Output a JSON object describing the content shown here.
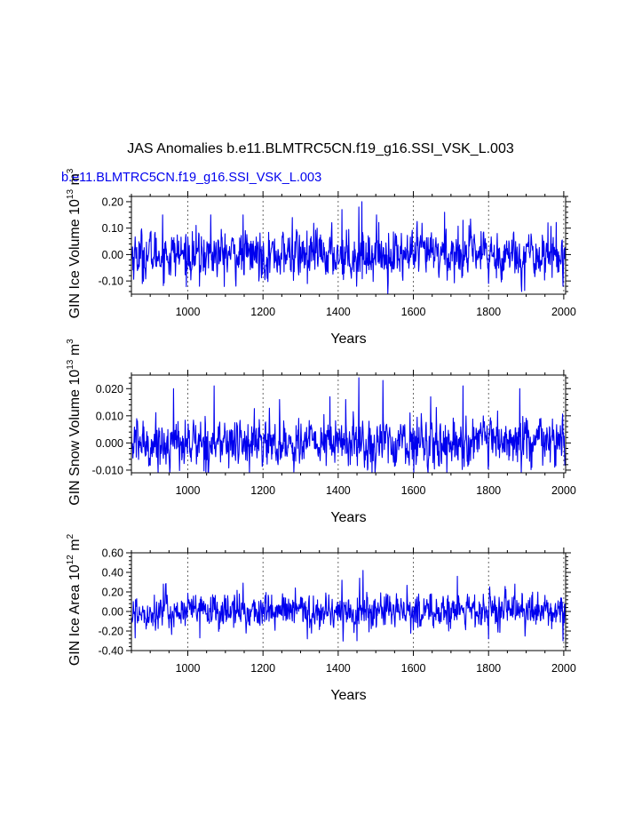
{
  "figure": {
    "title": "JAS Anomalies b.e11.BLMTRC5CN.f19_g16.SSI_VSK_L.003",
    "subtitle": "b.e11.BLMTRC5CN.f19_g16.SSI_VSK_L.003",
    "line_color": "#0000ee"
  },
  "chart_data": [
    {
      "type": "line",
      "series_name": "GIN Ice Volume anomaly",
      "ylabel": "GIN Ice Volume 10",
      "yunit_exp": "13",
      "yunit_suffix": " m",
      "yunit_sup": "3",
      "xlabel": "Years",
      "xlim": [
        850,
        2005
      ],
      "ylim": [
        -0.15,
        0.22
      ],
      "xticks": [
        1000,
        1200,
        1400,
        1600,
        1800,
        2000
      ],
      "yticks": [
        -0.1,
        0.0,
        0.1,
        0.2
      ],
      "ytick_labels": [
        "-0.10",
        "0.00",
        "0.10",
        "0.20"
      ],
      "noise_std": 0.045,
      "spikes": [
        [
          933,
          0.15
        ],
        [
          1061,
          0.15
        ],
        [
          1147,
          0.15
        ],
        [
          1278,
          0.14
        ],
        [
          1410,
          0.17
        ],
        [
          1455,
          0.18
        ],
        [
          1463,
          0.2
        ],
        [
          1502,
          0.15
        ],
        [
          1683,
          0.16
        ],
        [
          1732,
          0.13
        ],
        [
          1958,
          0.12
        ],
        [
          879,
          -0.11
        ],
        [
          1031,
          -0.12
        ],
        [
          1318,
          -0.11
        ],
        [
          1449,
          -0.12
        ],
        [
          1800,
          -0.11
        ],
        [
          1998,
          -0.12
        ]
      ]
    },
    {
      "type": "line",
      "series_name": "GIN Snow Volume anomaly",
      "ylabel": "GIN Snow Volume 10",
      "yunit_exp": "13",
      "yunit_suffix": " m",
      "yunit_sup": "3",
      "xlabel": "Years",
      "xlim": [
        850,
        2005
      ],
      "ylim": [
        -0.011,
        0.025
      ],
      "xticks": [
        1000,
        1200,
        1400,
        1600,
        1800,
        2000
      ],
      "yticks": [
        -0.01,
        0.0,
        0.01,
        0.02
      ],
      "ytick_labels": [
        "-0.010",
        "0.000",
        "0.010",
        "0.020"
      ],
      "noise_std": 0.0045,
      "spikes": [
        [
          962,
          0.02
        ],
        [
          1070,
          0.021
        ],
        [
          1244,
          0.016
        ],
        [
          1378,
          0.017
        ],
        [
          1420,
          0.016
        ],
        [
          1455,
          0.024
        ],
        [
          1519,
          0.023
        ],
        [
          1646,
          0.017
        ],
        [
          1732,
          0.021
        ],
        [
          1883,
          0.02
        ],
        [
          898,
          -0.008
        ],
        [
          1240,
          -0.008
        ],
        [
          1470,
          -0.009
        ],
        [
          1915,
          -0.009
        ]
      ]
    },
    {
      "type": "line",
      "series_name": "GIN Ice Area anomaly",
      "ylabel": "GIN Ice Area 10",
      "yunit_exp": "12",
      "yunit_suffix": " m",
      "yunit_sup": "2",
      "xlabel": "Years",
      "xlim": [
        850,
        2005
      ],
      "ylim": [
        -0.4,
        0.6
      ],
      "xticks": [
        1000,
        1200,
        1400,
        1600,
        1800,
        2000
      ],
      "yticks": [
        -0.4,
        -0.2,
        0.0,
        0.2,
        0.4,
        0.6
      ],
      "ytick_labels": [
        "-0.40",
        "-0.20",
        "0.00",
        "0.20",
        "0.40",
        "0.60"
      ],
      "noise_std": 0.09,
      "spikes": [
        [
          935,
          0.28
        ],
        [
          1147,
          0.29
        ],
        [
          1286,
          0.24
        ],
        [
          1410,
          0.32
        ],
        [
          1457,
          0.34
        ],
        [
          1466,
          0.42
        ],
        [
          1717,
          0.36
        ],
        [
          1870,
          0.28
        ],
        [
          860,
          -0.27
        ],
        [
          1032,
          -0.27
        ],
        [
          1318,
          -0.28
        ],
        [
          1450,
          -0.3
        ],
        [
          1800,
          -0.28
        ],
        [
          1998,
          -0.3
        ]
      ]
    }
  ]
}
